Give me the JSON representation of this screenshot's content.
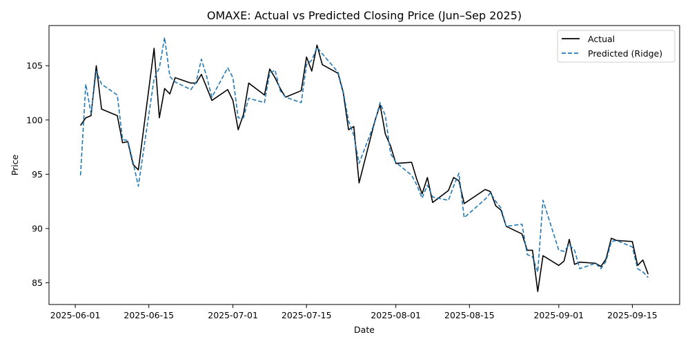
{
  "chart_data": {
    "type": "line",
    "title": "OMAXE: Actual vs Predicted Closing Price (Jun–Sep 2025)",
    "xlabel": "Date",
    "ylabel": "Price",
    "xlim": [
      "2025-05-27",
      "2025-09-24"
    ],
    "ylim": [
      83.0,
      108.7
    ],
    "grid": false,
    "legend_position": "top-right",
    "x_ticks": [
      "2025-06-01",
      "2025-06-15",
      "2025-07-01",
      "2025-07-15",
      "2025-08-01",
      "2025-08-15",
      "2025-09-01",
      "2025-09-15"
    ],
    "y_ticks": [
      85,
      90,
      95,
      100,
      105
    ],
    "x": [
      "2025-06-02",
      "2025-06-03",
      "2025-06-04",
      "2025-06-05",
      "2025-06-06",
      "2025-06-09",
      "2025-06-10",
      "2025-06-11",
      "2025-06-12",
      "2025-06-13",
      "2025-06-16",
      "2025-06-17",
      "2025-06-18",
      "2025-06-19",
      "2025-06-20",
      "2025-06-23",
      "2025-06-24",
      "2025-06-25",
      "2025-06-26",
      "2025-06-27",
      "2025-06-30",
      "2025-07-01",
      "2025-07-02",
      "2025-07-03",
      "2025-07-04",
      "2025-07-07",
      "2025-07-08",
      "2025-07-09",
      "2025-07-10",
      "2025-07-11",
      "2025-07-14",
      "2025-07-15",
      "2025-07-16",
      "2025-07-17",
      "2025-07-18",
      "2025-07-21",
      "2025-07-22",
      "2025-07-23",
      "2025-07-24",
      "2025-07-25",
      "2025-07-28",
      "2025-07-29",
      "2025-07-30",
      "2025-07-31",
      "2025-08-01",
      "2025-08-04",
      "2025-08-05",
      "2025-08-06",
      "2025-08-07",
      "2025-08-08",
      "2025-08-11",
      "2025-08-12",
      "2025-08-13",
      "2025-08-14",
      "2025-08-18",
      "2025-08-19",
      "2025-08-20",
      "2025-08-21",
      "2025-08-22",
      "2025-08-25",
      "2025-08-26",
      "2025-08-27",
      "2025-08-28",
      "2025-08-29",
      "2025-09-01",
      "2025-09-02",
      "2025-09-03",
      "2025-09-04",
      "2025-09-05",
      "2025-09-08",
      "2025-09-09",
      "2025-09-10",
      "2025-09-11",
      "2025-09-12",
      "2025-09-15",
      "2025-09-16",
      "2025-09-17",
      "2025-09-18"
    ],
    "series": [
      {
        "name": "Actual",
        "color": "#000000",
        "style": "solid",
        "values": [
          99.5,
          100.2,
          100.4,
          105.0,
          101.0,
          100.4,
          97.9,
          98.0,
          95.9,
          95.4,
          106.6,
          100.2,
          102.9,
          102.4,
          103.9,
          103.4,
          103.4,
          104.2,
          103.0,
          101.8,
          102.8,
          101.8,
          99.1,
          100.5,
          103.4,
          102.3,
          104.7,
          103.9,
          102.9,
          102.1,
          102.7,
          105.8,
          104.5,
          106.9,
          105.1,
          104.3,
          102.5,
          99.1,
          99.4,
          94.2,
          99.9,
          101.4,
          98.7,
          97.6,
          96.0,
          96.1,
          94.5,
          93.2,
          94.7,
          92.4,
          93.5,
          94.7,
          94.4,
          92.3,
          93.6,
          93.4,
          92.1,
          91.7,
          90.2,
          89.5,
          88.0,
          88.0,
          84.2,
          87.5,
          86.6,
          87.0,
          89.0,
          86.7,
          86.9,
          86.8,
          86.5,
          87.2,
          89.1,
          88.9,
          88.8,
          86.6,
          87.1,
          85.8
        ]
      },
      {
        "name": "Predicted (Ridge)",
        "color": "#1f77b4",
        "style": "dashed",
        "values": [
          94.9,
          103.3,
          100.6,
          104.5,
          103.3,
          102.3,
          98.2,
          98.1,
          96.1,
          93.9,
          103.8,
          104.8,
          107.6,
          104.0,
          103.5,
          102.8,
          103.5,
          105.6,
          104.0,
          102.1,
          104.8,
          103.9,
          100.2,
          100.2,
          102.0,
          101.6,
          104.3,
          104.6,
          102.7,
          102.1,
          101.6,
          105.1,
          105.5,
          106.7,
          106.1,
          104.4,
          102.6,
          99.9,
          98.6,
          96.0,
          99.8,
          101.6,
          100.4,
          96.9,
          96.1,
          94.9,
          94.0,
          92.8,
          94.0,
          92.9,
          92.6,
          93.9,
          95.1,
          91.0,
          92.7,
          93.3,
          92.5,
          91.9,
          90.2,
          90.4,
          87.6,
          87.4,
          86.0,
          92.6,
          88.0,
          87.9,
          88.5,
          88.0,
          86.3,
          86.8,
          86.3,
          87.0,
          88.8,
          88.9,
          88.3,
          86.3,
          86.0,
          85.5
        ]
      }
    ]
  }
}
